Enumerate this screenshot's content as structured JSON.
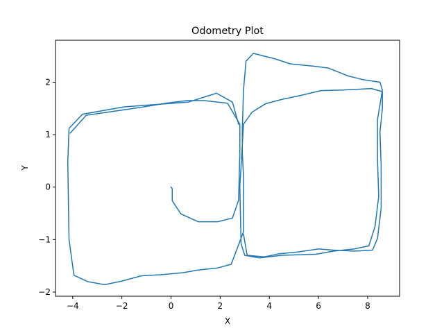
{
  "chart_data": {
    "type": "line",
    "title": "Odometry Plot",
    "xlabel": "X",
    "ylabel": "Y",
    "xlim": [
      -4.7,
      9.3
    ],
    "ylim": [
      -2.08,
      2.8
    ],
    "xticks": [
      -4,
      -2,
      0,
      2,
      4,
      6,
      8
    ],
    "yticks": [
      -2,
      -1,
      0,
      1,
      2
    ],
    "grid": false,
    "line_color": "#1f77b4",
    "series": [
      {
        "points": [
          [
            0.0,
            0.0
          ],
          [
            0.05,
            -0.03
          ],
          [
            0.05,
            -0.26
          ],
          [
            0.4,
            -0.51
          ],
          [
            1.1,
            -0.66
          ],
          [
            1.9,
            -0.66
          ],
          [
            2.5,
            -0.59
          ],
          [
            2.75,
            -0.25
          ],
          [
            2.8,
            0.65
          ],
          [
            2.8,
            1.2
          ],
          [
            2.3,
            1.6
          ],
          [
            1.35,
            1.65
          ],
          [
            0.65,
            1.65
          ],
          [
            -0.2,
            1.6
          ],
          [
            -1.1,
            1.53
          ],
          [
            -2.1,
            1.46
          ],
          [
            -3.45,
            1.37
          ],
          [
            -4.1,
            1.03
          ]
        ]
      },
      {
        "points": [
          [
            2.75,
            1.2
          ],
          [
            2.5,
            1.62
          ],
          [
            1.85,
            1.79
          ],
          [
            0.7,
            1.62
          ],
          [
            -1.9,
            1.53
          ],
          [
            -3.6,
            1.39
          ],
          [
            -4.15,
            1.12
          ],
          [
            -4.2,
            0.47
          ],
          [
            -4.15,
            -1.0
          ],
          [
            -3.95,
            -1.68
          ],
          [
            -3.4,
            -1.8
          ],
          [
            -2.7,
            -1.86
          ],
          [
            -2.0,
            -1.79
          ],
          [
            -1.2,
            -1.69
          ],
          [
            -0.4,
            -1.67
          ],
          [
            0.5,
            -1.63
          ],
          [
            1.1,
            -1.58
          ],
          [
            1.9,
            -1.54
          ],
          [
            2.45,
            -1.47
          ],
          [
            2.95,
            -0.85
          ],
          [
            2.95,
            0.2
          ],
          [
            2.9,
            0.65
          ],
          [
            2.9,
            1.1
          ],
          [
            2.95,
            1.85
          ],
          [
            3.05,
            2.4
          ],
          [
            3.35,
            2.55
          ],
          [
            3.85,
            2.49
          ],
          [
            4.2,
            2.45
          ],
          [
            4.85,
            2.35
          ],
          [
            5.9,
            2.3
          ],
          [
            6.4,
            2.27
          ],
          [
            7.2,
            2.12
          ],
          [
            7.8,
            2.05
          ],
          [
            8.5,
            2.0
          ],
          [
            8.6,
            1.85
          ],
          [
            8.4,
            1.28
          ],
          [
            8.4,
            0.55
          ],
          [
            8.45,
            -0.18
          ],
          [
            8.3,
            -0.75
          ],
          [
            8.05,
            -1.12
          ],
          [
            7.45,
            -1.18
          ],
          [
            6.6,
            -1.22
          ],
          [
            5.9,
            -1.28
          ],
          [
            4.5,
            -1.3
          ],
          [
            3.6,
            -1.35
          ],
          [
            3.0,
            -1.3
          ],
          [
            2.85,
            -1.08
          ],
          [
            2.8,
            0.0
          ],
          [
            2.95,
            1.2
          ],
          [
            3.3,
            1.43
          ],
          [
            3.85,
            1.59
          ],
          [
            4.5,
            1.67
          ],
          [
            5.3,
            1.75
          ],
          [
            6.1,
            1.84
          ],
          [
            7.0,
            1.85
          ],
          [
            8.15,
            1.88
          ],
          [
            8.6,
            1.82
          ],
          [
            8.6,
            1.5
          ],
          [
            8.5,
            1.05
          ],
          [
            8.55,
            0.4
          ],
          [
            8.55,
            -0.4
          ],
          [
            8.4,
            -0.98
          ],
          [
            8.2,
            -1.2
          ],
          [
            7.45,
            -1.22
          ],
          [
            6.6,
            -1.2
          ],
          [
            6.0,
            -1.18
          ],
          [
            5.1,
            -1.24
          ],
          [
            4.4,
            -1.27
          ],
          [
            3.8,
            -1.33
          ],
          [
            3.1,
            -1.3
          ],
          [
            2.95,
            -0.9
          ]
        ]
      }
    ]
  }
}
